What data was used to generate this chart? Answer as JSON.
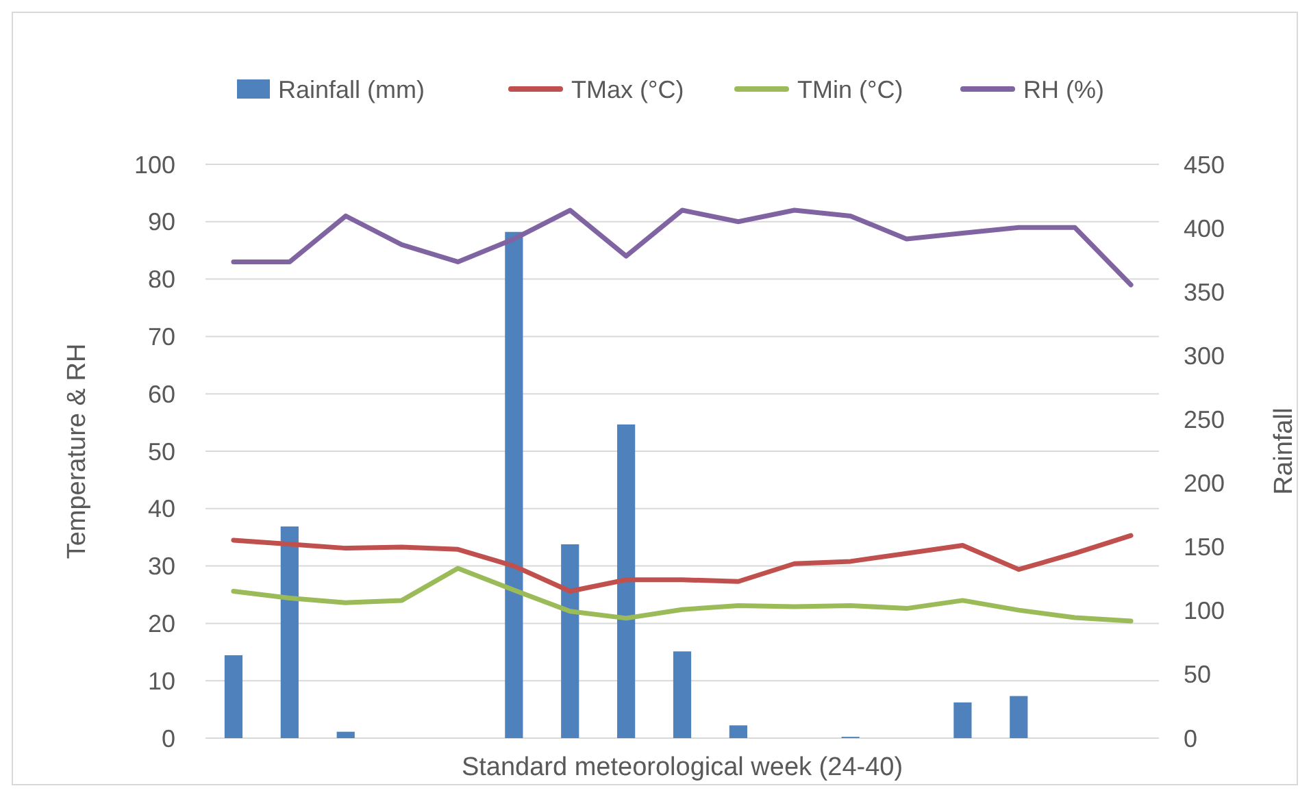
{
  "chart_data": {
    "type": "bar",
    "xlabel": "Standard meteorological week (24-40)",
    "ylabel": "Temperature & RH",
    "y2label": "Rainfall",
    "categories": [
      null,
      null,
      null,
      null,
      null,
      null,
      null,
      null,
      null,
      null,
      null,
      null,
      null,
      null,
      null,
      null,
      null
    ],
    "series": [
      {
        "name": "Rainfall (mm)",
        "axis": "y2",
        "color": "#4f81bd",
        "values": [
          65,
          166,
          5,
          0,
          0,
          397,
          152,
          246,
          68,
          10,
          0,
          1,
          0,
          28,
          33,
          0,
          0
        ]
      },
      {
        "name": "TMax (°C)",
        "type": "line",
        "color": "#c0504d",
        "values": [
          34.5,
          33.8,
          33.1,
          33.3,
          32.9,
          30,
          25.6,
          27.6,
          27.6,
          27.3,
          30.4,
          30.8,
          32.2,
          33.6,
          29.4,
          32.2,
          35.3
        ]
      },
      {
        "name": "TMin (°C)",
        "type": "line",
        "color": "#9bbb59",
        "values": [
          25.6,
          24.4,
          23.6,
          24.0,
          29.6,
          25.8,
          22.1,
          20.9,
          22.4,
          23.1,
          22.9,
          23.1,
          22.6,
          24.0,
          22.3,
          21.0,
          20.4
        ]
      },
      {
        "name": "RH (%)",
        "type": "line",
        "color": "#8064a2",
        "values": [
          83,
          83,
          91,
          86,
          83,
          87,
          92,
          84,
          92,
          90,
          92,
          91,
          87,
          88,
          89,
          89,
          79
        ]
      }
    ],
    "ylim": [
      0,
      100
    ],
    "yticks": [
      0,
      10,
      20,
      30,
      40,
      50,
      60,
      70,
      80,
      90,
      100
    ],
    "y2lim": [
      0,
      450
    ],
    "y2ticks": [
      0,
      50,
      100,
      150,
      200,
      250,
      300,
      350,
      400,
      450
    ],
    "grid": "y",
    "legend": "top",
    "marker": "none"
  }
}
